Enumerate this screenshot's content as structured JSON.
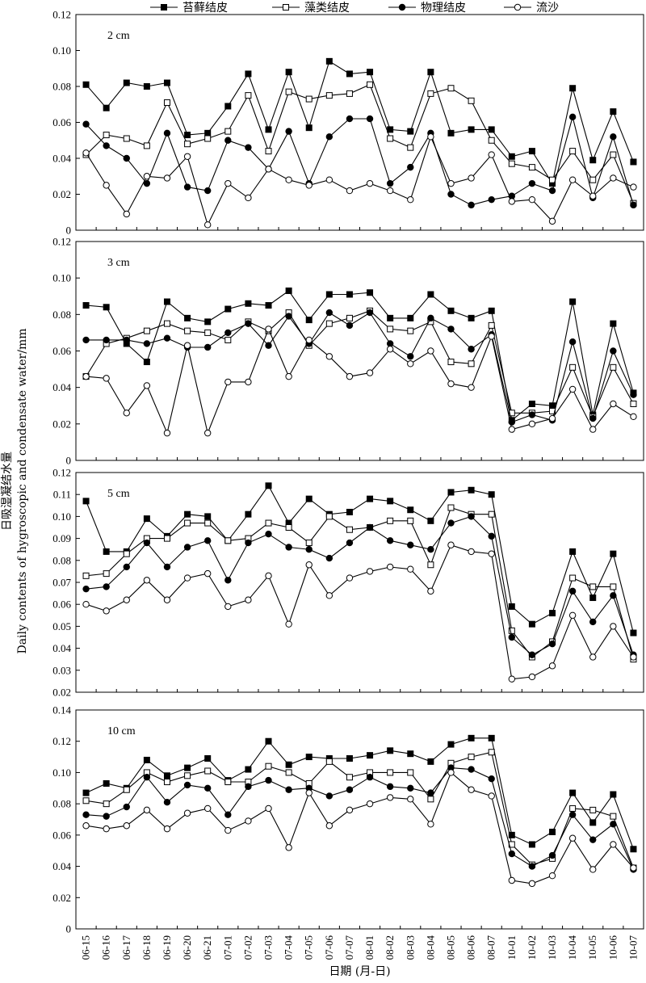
{
  "chart_data": {
    "type": "line",
    "xlabel": "日期 (月-日)",
    "ylabel_cn": "日吸湿凝结水量",
    "ylabel_en": "Daily contents of hygroscopic and condensate water/mm",
    "categories": [
      "06-15",
      "06-16",
      "06-17",
      "06-18",
      "06-19",
      "06-20",
      "06-21",
      "07-01",
      "07-02",
      "07-03",
      "07-04",
      "07-05",
      "07-06",
      "07-07",
      "08-01",
      "08-02",
      "08-03",
      "08-04",
      "08-05",
      "08-06",
      "08-07",
      "10-01",
      "10-02",
      "10-03",
      "10-04",
      "10-05",
      "10-06",
      "10-07"
    ],
    "legend": [
      {
        "name": "苔藓结皮",
        "marker": "square-filled"
      },
      {
        "name": "藻类结皮",
        "marker": "square-open"
      },
      {
        "name": "物理结皮",
        "marker": "circle-filled"
      },
      {
        "name": "流沙",
        "marker": "circle-open"
      }
    ],
    "panels": [
      {
        "label": "2 cm",
        "ylim": [
          0,
          0.12
        ],
        "yticks": [
          "0",
          "0.02",
          "0.04",
          "0.06",
          "0.08",
          "0.10",
          "0.12"
        ],
        "series": [
          {
            "name": "苔藓结皮",
            "values": [
              0.081,
              0.068,
              0.082,
              0.08,
              0.082,
              0.053,
              0.054,
              0.069,
              0.087,
              0.056,
              0.088,
              0.057,
              0.094,
              0.087,
              0.088,
              0.056,
              0.055,
              0.088,
              0.054,
              0.056,
              0.056,
              0.041,
              0.044,
              0.026,
              0.079,
              0.039,
              0.066,
              0.038
            ]
          },
          {
            "name": "藻类结皮",
            "values": [
              0.042,
              0.053,
              0.051,
              0.047,
              0.071,
              0.048,
              0.051,
              0.055,
              0.075,
              0.044,
              0.077,
              0.073,
              0.075,
              0.076,
              0.081,
              0.051,
              0.046,
              0.076,
              0.079,
              0.072,
              0.05,
              0.037,
              0.035,
              0.028,
              0.044,
              0.028,
              0.042,
              0.015
            ]
          },
          {
            "name": "物理结皮",
            "values": [
              0.059,
              0.047,
              0.04,
              0.026,
              0.054,
              0.024,
              0.022,
              0.05,
              0.046,
              0.034,
              0.055,
              0.026,
              0.052,
              0.062,
              0.062,
              0.026,
              0.035,
              0.054,
              0.02,
              0.014,
              0.017,
              0.019,
              0.026,
              0.022,
              0.063,
              0.018,
              0.052,
              0.014
            ]
          },
          {
            "name": "流沙",
            "values": [
              0.043,
              0.025,
              0.009,
              0.03,
              0.029,
              0.041,
              0.003,
              0.026,
              0.018,
              0.034,
              0.028,
              0.025,
              0.028,
              0.022,
              0.026,
              0.022,
              0.017,
              0.052,
              0.026,
              0.029,
              0.042,
              0.016,
              0.017,
              0.005,
              0.028,
              0.019,
              0.029,
              0.024
            ]
          }
        ]
      },
      {
        "label": "3 cm",
        "ylim": [
          0,
          0.12
        ],
        "yticks": [
          "0",
          "0.02",
          "0.04",
          "0.06",
          "0.08",
          "0.10",
          "0.12"
        ],
        "series": [
          {
            "name": "苔藓结皮",
            "values": [
              0.085,
              0.084,
              0.064,
              0.054,
              0.087,
              0.078,
              0.076,
              0.083,
              0.086,
              0.085,
              0.093,
              0.077,
              0.091,
              0.091,
              0.092,
              0.078,
              0.078,
              0.091,
              0.082,
              0.078,
              0.082,
              0.022,
              0.031,
              0.03,
              0.087,
              0.025,
              0.075,
              0.037
            ]
          },
          {
            "name": "藻类结皮",
            "values": [
              0.046,
              0.064,
              0.067,
              0.071,
              0.075,
              0.071,
              0.07,
              0.066,
              0.076,
              0.071,
              0.081,
              0.063,
              0.075,
              0.078,
              0.082,
              0.072,
              0.071,
              0.076,
              0.054,
              0.053,
              0.074,
              0.026,
              0.026,
              0.027,
              0.051,
              0.024,
              0.051,
              0.031
            ]
          },
          {
            "name": "物理结皮",
            "values": [
              0.066,
              0.066,
              0.066,
              0.064,
              0.067,
              0.062,
              0.062,
              0.07,
              0.075,
              0.063,
              0.079,
              0.064,
              0.081,
              0.074,
              0.081,
              0.064,
              0.057,
              0.078,
              0.072,
              0.061,
              0.069,
              0.021,
              0.025,
              0.022,
              0.065,
              0.023,
              0.06,
              0.036
            ]
          },
          {
            "name": "流沙",
            "values": [
              0.046,
              0.045,
              0.026,
              0.041,
              0.015,
              0.063,
              0.015,
              0.043,
              0.043,
              0.072,
              0.046,
              0.066,
              0.057,
              0.046,
              0.048,
              0.061,
              0.053,
              0.06,
              0.042,
              0.04,
              0.068,
              0.017,
              0.02,
              0.023,
              0.039,
              0.017,
              0.031,
              0.024
            ]
          }
        ]
      },
      {
        "label": "5 cm",
        "ylim": [
          0.02,
          0.12
        ],
        "yticks": [
          "0.02",
          "0.03",
          "0.04",
          "0.05",
          "0.06",
          "0.07",
          "0.08",
          "0.09",
          "0.10",
          "0.11",
          "0.12"
        ],
        "series": [
          {
            "name": "苔藓结皮",
            "values": [
              0.107,
              0.084,
              0.084,
              0.099,
              0.091,
              0.101,
              0.1,
              0.089,
              0.101,
              0.114,
              0.097,
              0.108,
              0.101,
              0.102,
              0.108,
              0.107,
              0.103,
              0.098,
              0.111,
              0.112,
              0.11,
              0.059,
              0.051,
              0.056,
              0.084,
              0.063,
              0.083,
              0.047
            ]
          },
          {
            "name": "藻类结皮",
            "values": [
              0.073,
              0.074,
              0.083,
              0.09,
              0.09,
              0.097,
              0.097,
              0.089,
              0.09,
              0.097,
              0.095,
              0.088,
              0.1,
              0.094,
              0.095,
              0.098,
              0.098,
              0.078,
              0.104,
              0.101,
              0.101,
              0.048,
              0.036,
              0.043,
              0.072,
              0.068,
              0.068,
              0.035
            ]
          },
          {
            "name": "物理结皮",
            "values": [
              0.067,
              0.068,
              0.077,
              0.088,
              0.077,
              0.086,
              0.089,
              0.071,
              0.088,
              0.092,
              0.086,
              0.085,
              0.081,
              0.088,
              0.095,
              0.089,
              0.087,
              0.085,
              0.097,
              0.1,
              0.091,
              0.045,
              0.037,
              0.042,
              0.066,
              0.052,
              0.064,
              0.037
            ]
          },
          {
            "name": "流沙",
            "values": [
              0.06,
              0.057,
              0.062,
              0.071,
              0.062,
              0.072,
              0.074,
              0.059,
              0.062,
              0.073,
              0.051,
              0.078,
              0.064,
              0.072,
              0.075,
              0.077,
              0.076,
              0.066,
              0.087,
              0.084,
              0.083,
              0.026,
              0.027,
              0.032,
              0.055,
              0.036,
              0.05,
              0.036
            ]
          }
        ]
      },
      {
        "label": "10 cm",
        "ylim": [
          0,
          0.14
        ],
        "yticks": [
          "0",
          "0.02",
          "0.04",
          "0.06",
          "0.08",
          "0.10",
          "0.12",
          "0.14"
        ],
        "series": [
          {
            "name": "苔藓结皮",
            "values": [
              0.087,
              0.093,
              0.09,
              0.108,
              0.098,
              0.103,
              0.109,
              0.095,
              0.102,
              0.12,
              0.105,
              0.11,
              0.109,
              0.109,
              0.111,
              0.114,
              0.112,
              0.107,
              0.118,
              0.122,
              0.122,
              0.06,
              0.054,
              0.062,
              0.087,
              0.068,
              0.086,
              0.051
            ]
          },
          {
            "name": "藻类结皮",
            "values": [
              0.082,
              0.08,
              0.089,
              0.1,
              0.094,
              0.098,
              0.101,
              0.094,
              0.094,
              0.104,
              0.1,
              0.093,
              0.107,
              0.097,
              0.1,
              0.1,
              0.1,
              0.083,
              0.106,
              0.11,
              0.113,
              0.054,
              0.041,
              0.045,
              0.077,
              0.076,
              0.072,
              0.039
            ]
          },
          {
            "name": "物理结皮",
            "values": [
              0.073,
              0.072,
              0.078,
              0.097,
              0.081,
              0.092,
              0.09,
              0.073,
              0.091,
              0.095,
              0.089,
              0.09,
              0.085,
              0.089,
              0.097,
              0.091,
              0.09,
              0.087,
              0.103,
              0.102,
              0.096,
              0.048,
              0.04,
              0.047,
              0.073,
              0.057,
              0.067,
              0.038
            ]
          },
          {
            "name": "流沙",
            "values": [
              0.066,
              0.064,
              0.066,
              0.076,
              0.064,
              0.074,
              0.077,
              0.063,
              0.069,
              0.077,
              0.052,
              0.087,
              0.066,
              0.076,
              0.08,
              0.084,
              0.083,
              0.067,
              0.1,
              0.089,
              0.085,
              0.031,
              0.029,
              0.034,
              0.058,
              0.038,
              0.054,
              0.039
            ]
          }
        ]
      }
    ]
  }
}
